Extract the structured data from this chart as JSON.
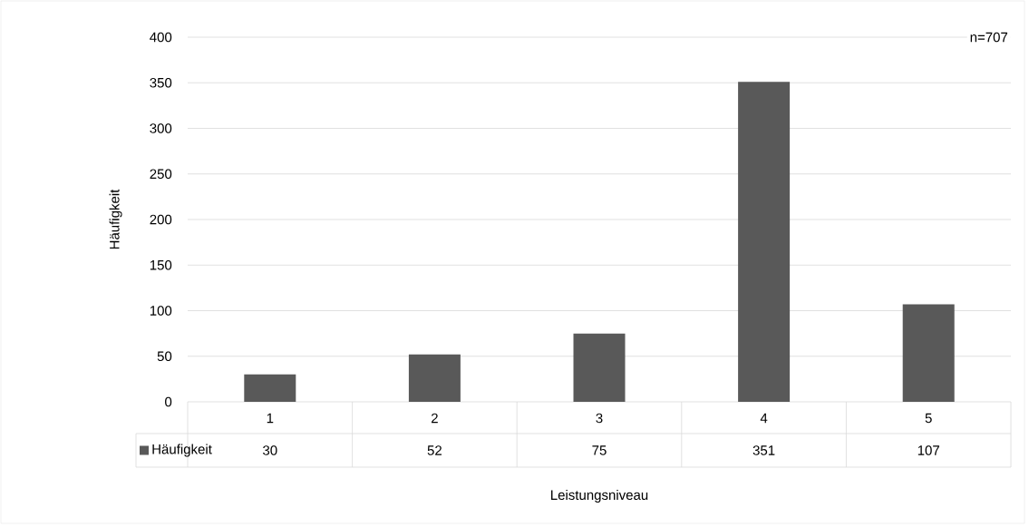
{
  "chart_data": {
    "type": "bar",
    "xlabel": "Leistungsniveau",
    "ylabel": "Häufigkeit",
    "annotations": [
      "n=707"
    ],
    "categories": [
      "1",
      "2",
      "3",
      "4",
      "5"
    ],
    "series": [
      {
        "name": "Häufigkeit",
        "color": "#595959",
        "values": [
          30,
          52,
          75,
          351,
          107
        ]
      }
    ],
    "ylim": [
      0,
      400
    ],
    "yticks": [
      0,
      50,
      100,
      150,
      200,
      250,
      300,
      350,
      400
    ],
    "grid": "y",
    "legend": "bottom",
    "data_labels": true
  }
}
